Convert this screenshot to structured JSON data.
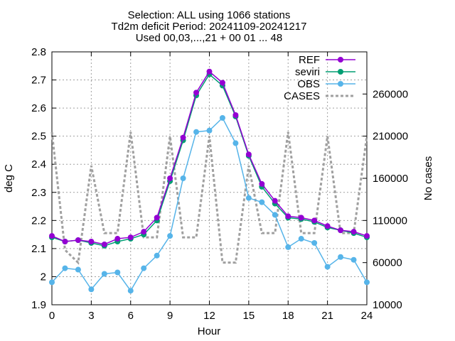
{
  "chart_data": {
    "type": "line",
    "title_lines": [
      "Selection: ALL using  1066 stations",
      "Td2m deficit   Period: 20241109-20241217",
      "Used 00,03,...,21 + 00 01 ... 48"
    ],
    "xlabel": "Hour",
    "ylabel": "deg C",
    "y2label": "No cases",
    "xlim": [
      0,
      24
    ],
    "ylim": [
      1.9,
      2.8
    ],
    "y2lim": [
      10000,
      310000
    ],
    "x_ticks": [
      "0",
      "3",
      "6",
      "9",
      "12",
      "15",
      "18",
      "21",
      "24"
    ],
    "y_ticks": [
      "1.9",
      "2",
      "2.1",
      "2.2",
      "2.3",
      "2.4",
      "2.5",
      "2.6",
      "2.7",
      "2.8"
    ],
    "y2_ticks": [
      "10000",
      "60000",
      "110000",
      "160000",
      "210000",
      "260000"
    ],
    "grid": true,
    "legend_position": "top-right",
    "x": [
      0,
      1,
      2,
      3,
      4,
      5,
      6,
      7,
      8,
      9,
      10,
      11,
      12,
      13,
      14,
      15,
      16,
      17,
      18,
      19,
      20,
      21,
      22,
      23,
      24
    ],
    "series": [
      {
        "name": "REF",
        "axis": "y",
        "color": "#9400d3",
        "marker": "circle",
        "values": [
          2.145,
          2.125,
          2.13,
          2.125,
          2.115,
          2.135,
          2.14,
          2.16,
          2.21,
          2.35,
          2.495,
          2.655,
          2.73,
          2.69,
          2.575,
          2.435,
          2.33,
          2.27,
          2.215,
          2.21,
          2.2,
          2.18,
          2.165,
          2.16,
          2.145
        ]
      },
      {
        "name": "seviri",
        "axis": "y",
        "color": "#009e73",
        "marker": "circle",
        "values": [
          2.14,
          2.125,
          2.13,
          2.12,
          2.11,
          2.125,
          2.135,
          2.15,
          2.2,
          2.34,
          2.485,
          2.645,
          2.72,
          2.68,
          2.57,
          2.43,
          2.32,
          2.26,
          2.21,
          2.205,
          2.195,
          2.175,
          2.165,
          2.155,
          2.14
        ]
      },
      {
        "name": "OBS",
        "axis": "y",
        "color": "#56b4e9",
        "marker": "circle",
        "values": [
          1.98,
          2.03,
          2.025,
          1.955,
          2.01,
          2.015,
          1.95,
          2.03,
          2.075,
          2.145,
          2.35,
          2.515,
          2.52,
          2.565,
          2.475,
          2.28,
          2.265,
          2.22,
          2.105,
          2.135,
          2.12,
          2.035,
          2.07,
          2.06,
          1.98
        ]
      },
      {
        "name": "CASES",
        "axis": "y2",
        "color": "#a0a0a0",
        "dash": true,
        "x": [
          0,
          1,
          2,
          3,
          4,
          5,
          6,
          7,
          8,
          9,
          10,
          11,
          12,
          13,
          14,
          15,
          16,
          17,
          18,
          19,
          20,
          21,
          22,
          23,
          24
        ],
        "values": [
          215000,
          75000,
          60000,
          175000,
          95000,
          95000,
          215000,
          90000,
          90000,
          210000,
          90000,
          90000,
          210000,
          60000,
          60000,
          175000,
          95000,
          95000,
          215000,
          95000,
          95000,
          210000,
          95000,
          95000,
          210000
        ]
      }
    ]
  }
}
